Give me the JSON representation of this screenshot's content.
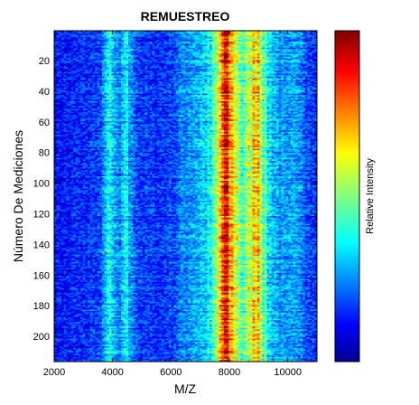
{
  "chart_data": {
    "type": "heatmap",
    "title": "REMUESTREO",
    "xlabel": "M/Z",
    "ylabel": "Número De Mediciones",
    "xlim": [
      2000,
      11000
    ],
    "ylim": [
      1,
      216
    ],
    "y_reversed": true,
    "xticks": [
      2000,
      4000,
      6000,
      8000,
      10000
    ],
    "yticks": [
      20,
      40,
      60,
      80,
      100,
      120,
      140,
      160,
      180,
      200
    ],
    "colormap": "jet",
    "colorbar": {
      "label": "Relative Intensity",
      "position": "right",
      "tick_labels": false
    },
    "grid": false,
    "intensity_profile": {
      "mz": [
        2000,
        2400,
        2900,
        3200,
        3600,
        3800,
        3850,
        3950,
        4000,
        4250,
        4450,
        4500,
        4600,
        5000,
        5500,
        6000,
        6400,
        6800,
        7100,
        7400,
        7600,
        7750,
        7850,
        7950,
        8050,
        8200,
        8300,
        8450,
        8600,
        8800,
        8900,
        9000,
        9100,
        9300,
        9700,
        10000,
        10400,
        10700,
        11000
      ],
      "relative_intensity": [
        0.14,
        0.15,
        0.16,
        0.17,
        0.2,
        0.32,
        0.44,
        0.38,
        0.3,
        0.24,
        0.36,
        0.4,
        0.26,
        0.18,
        0.17,
        0.19,
        0.25,
        0.3,
        0.33,
        0.38,
        0.55,
        0.78,
        0.86,
        0.8,
        0.7,
        0.62,
        0.55,
        0.45,
        0.5,
        0.62,
        0.7,
        0.72,
        0.55,
        0.38,
        0.28,
        0.25,
        0.3,
        0.2,
        0.16
      ]
    }
  },
  "colors": {
    "background": "#ffffff",
    "axis": "#000000"
  }
}
